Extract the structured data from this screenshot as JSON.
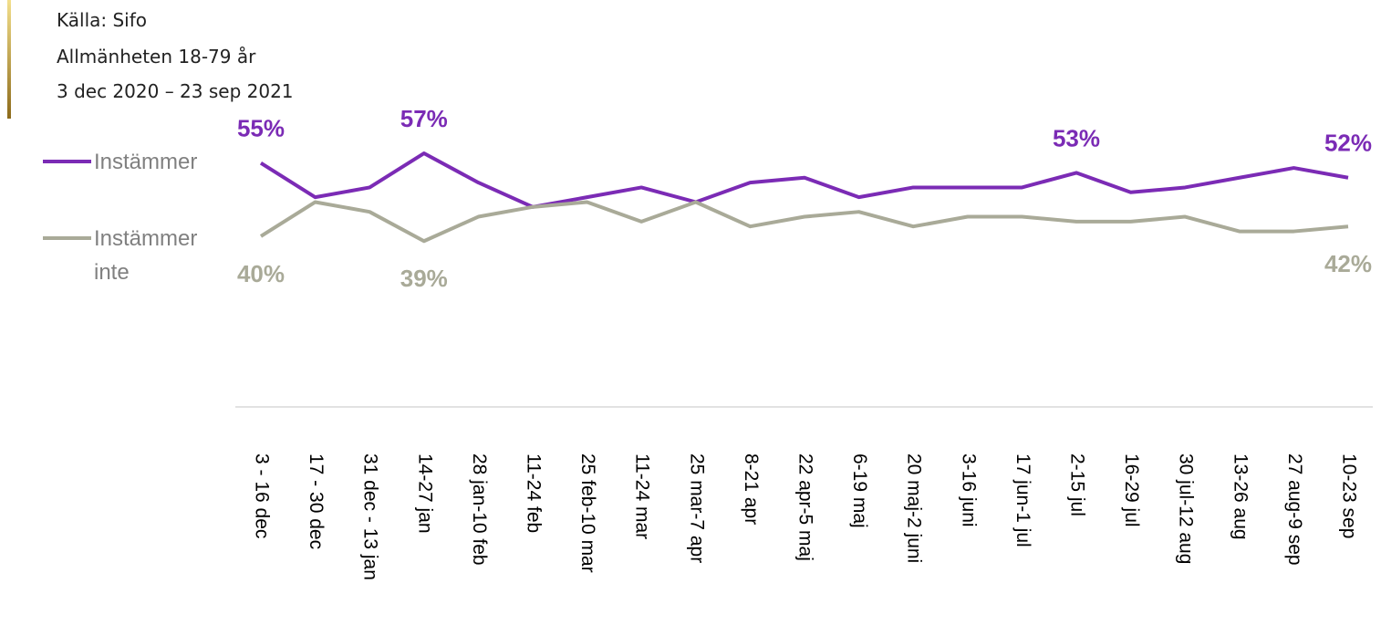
{
  "chart_data": {
    "type": "line",
    "source_lines": [
      "Källa: Sifo",
      "Allmänheten 18-79 år",
      "3 dec 2020 – 23 sep 2021"
    ],
    "categories": [
      "3 - 16 dec",
      "17 - 30 dec",
      "31 dec - 13 jan",
      "14-27 jan",
      "28 jan-10 feb",
      "11-24 feb",
      "25 feb-10 mar",
      "11-24 mar",
      "25 mar-7 apr",
      "8-21 apr",
      "22 apr-5 maj",
      "6-19 maj",
      "20 maj-2 juni",
      "3-16 juni",
      "17 jun-1 jul",
      "2-15 jul",
      "16-29 jul",
      "30 jul-12 aug",
      "13-26 aug",
      "27 aug-9 sep",
      "10-23 sep"
    ],
    "series": [
      {
        "name": "Instämmer",
        "color": "#7b2bb5",
        "values": [
          55,
          48,
          50,
          57,
          51,
          46,
          48,
          50,
          47,
          51,
          52,
          48,
          50,
          50,
          50,
          53,
          49,
          50,
          52,
          54,
          52
        ],
        "value_labels": [
          "55%",
          null,
          null,
          "57%",
          null,
          null,
          null,
          null,
          null,
          null,
          null,
          null,
          null,
          null,
          null,
          "53%",
          null,
          null,
          null,
          null,
          "52%"
        ]
      },
      {
        "name": "Instämmer inte",
        "color": "#a9aa98",
        "values": [
          40,
          47,
          45,
          39,
          44,
          46,
          47,
          43,
          47,
          42,
          44,
          45,
          42,
          44,
          44,
          43,
          43,
          44,
          41,
          41,
          42
        ],
        "value_labels": [
          "40%",
          null,
          null,
          "39%",
          null,
          null,
          null,
          null,
          null,
          null,
          null,
          null,
          null,
          null,
          null,
          null,
          null,
          null,
          null,
          null,
          "42%"
        ]
      }
    ],
    "ylim": [
      5,
      60
    ],
    "legend": "left"
  }
}
